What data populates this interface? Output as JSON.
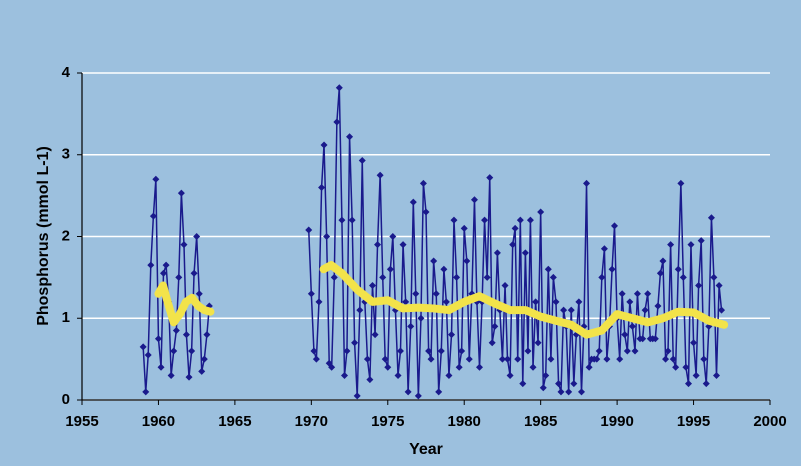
{
  "chart_data": {
    "type": "line",
    "xlabel": "Year",
    "ylabel": "Phosphorus (mmol L-1)",
    "xlim": [
      1955,
      2000
    ],
    "xticks": [
      1955,
      1960,
      1965,
      1970,
      1975,
      1980,
      1985,
      1990,
      1995,
      2000
    ],
    "ylim": [
      0,
      4
    ],
    "yticks": [
      0,
      1,
      2,
      3,
      4
    ],
    "grid": true,
    "series": [
      {
        "color": "#1a1a8c",
        "marker": "diamond",
        "x": [
          1959.0,
          1959.17,
          1959.33,
          1959.5,
          1959.67,
          1959.83,
          1960.0,
          1960.17,
          1960.33,
          1960.5,
          1960.67,
          1960.83,
          1961.0,
          1961.17,
          1961.33,
          1961.5,
          1961.67,
          1961.83,
          1962.0,
          1962.17,
          1962.33,
          1962.5,
          1962.67,
          1962.83,
          1963.0,
          1963.17,
          1963.33,
          1966,
          1969.83,
          1970.0,
          1970.17,
          1970.33,
          1970.5,
          1970.67,
          1970.83,
          1971.0,
          1971.17,
          1971.33,
          1971.5,
          1971.67,
          1971.83,
          1972.0,
          1972.17,
          1972.33,
          1972.5,
          1972.67,
          1972.83,
          1973.0,
          1973.17,
          1973.33,
          1973.5,
          1973.67,
          1973.83,
          1974.0,
          1974.17,
          1974.33,
          1974.5,
          1974.67,
          1974.83,
          1975.0,
          1975.17,
          1975.33,
          1975.5,
          1975.67,
          1975.83,
          1976.0,
          1976.17,
          1976.33,
          1976.5,
          1976.67,
          1976.83,
          1977.0,
          1977.17,
          1977.33,
          1977.5,
          1977.67,
          1977.83,
          1978.0,
          1978.17,
          1978.33,
          1978.5,
          1978.67,
          1978.83,
          1979.0,
          1979.17,
          1979.33,
          1979.5,
          1979.67,
          1979.83,
          1980.0,
          1980.17,
          1980.33,
          1980.5,
          1980.67,
          1980.83,
          1981.0,
          1981.17,
          1981.33,
          1981.5,
          1981.67,
          1981.83,
          1982.0,
          1982.17,
          1982.33,
          1982.5,
          1982.67,
          1982.83,
          1983.0,
          1983.17,
          1983.33,
          1983.5,
          1983.67,
          1983.83,
          1984.0,
          1984.17,
          1984.33,
          1984.5,
          1984.67,
          1984.83,
          1985.0,
          1985.17,
          1985.33,
          1985.5,
          1985.67,
          1985.83,
          1986.0,
          1986.17,
          1986.33,
          1986.5,
          1986.67,
          1986.83,
          1987.0,
          1987.17,
          1987.33,
          1987.5,
          1987.67,
          1987.83,
          1988.0,
          1988.17,
          1988.33,
          1988.5,
          1988.67,
          1988.83,
          1989.0,
          1989.17,
          1989.33,
          1989.5,
          1989.67,
          1989.83,
          1990.0,
          1990.17,
          1990.33,
          1990.5,
          1990.67,
          1990.83,
          1991.0,
          1991.17,
          1991.33,
          1991.5,
          1991.67,
          1991.83,
          1992.0,
          1992.17,
          1992.33,
          1992.5,
          1992.67,
          1992.83,
          1993.0,
          1993.17,
          1993.33,
          1993.5,
          1993.67,
          1993.83,
          1994.0,
          1994.17,
          1994.33,
          1994.5,
          1994.67,
          1994.83,
          1995.0,
          1995.17,
          1995.33,
          1995.5,
          1995.67,
          1995.83,
          1996.0,
          1996.17,
          1996.33,
          1996.5,
          1996.67,
          1996.83
        ],
        "values": [
          0.65,
          0.1,
          0.55,
          1.65,
          2.25,
          2.7,
          0.75,
          0.4,
          1.55,
          1.65,
          1.2,
          0.3,
          0.6,
          0.85,
          1.5,
          2.53,
          1.9,
          0.8,
          0.28,
          0.6,
          1.55,
          2.0,
          1.3,
          0.35,
          0.5,
          0.8,
          1.15,
          null,
          2.08,
          1.3,
          0.6,
          0.5,
          1.2,
          2.6,
          3.12,
          2.0,
          0.45,
          0.4,
          1.5,
          3.4,
          3.82,
          2.2,
          0.3,
          0.6,
          3.22,
          2.2,
          0.7,
          0.05,
          1.1,
          2.93,
          1.2,
          0.5,
          0.25,
          1.4,
          0.8,
          1.9,
          2.75,
          1.5,
          0.5,
          0.4,
          1.6,
          2.0,
          1.1,
          0.3,
          0.6,
          1.9,
          1.2,
          0.1,
          0.9,
          2.42,
          1.3,
          0.05,
          1.0,
          2.65,
          2.3,
          0.6,
          0.5,
          1.7,
          1.3,
          0.1,
          0.6,
          1.6,
          1.2,
          0.3,
          0.8,
          2.2,
          1.5,
          0.4,
          0.6,
          2.1,
          1.7,
          0.5,
          1.3,
          2.45,
          1.2,
          0.4,
          1.2,
          2.2,
          1.5,
          2.72,
          0.7,
          0.9,
          1.8,
          1.1,
          0.5,
          1.4,
          0.5,
          0.3,
          1.9,
          2.1,
          0.5,
          2.2,
          0.2,
          1.8,
          0.6,
          2.2,
          0.4,
          1.2,
          0.7,
          2.3,
          0.15,
          0.3,
          1.6,
          0.5,
          1.5,
          1.2,
          0.2,
          0.1,
          1.1,
          0.9,
          0.1,
          1.1,
          0.2,
          0.8,
          1.2,
          0.1,
          0.9,
          2.65,
          0.4,
          0.5,
          0.5,
          0.5,
          0.6,
          1.5,
          1.85,
          0.5,
          0.9,
          1.6,
          2.13,
          1.0,
          0.5,
          1.3,
          0.8,
          0.6,
          1.2,
          0.9,
          0.6,
          1.3,
          0.75,
          0.75,
          1.1,
          1.3,
          0.75,
          0.75,
          0.75,
          1.15,
          1.55,
          1.7,
          0.5,
          0.6,
          1.9,
          0.5,
          0.4,
          1.6,
          2.65,
          1.5,
          0.4,
          0.2,
          1.9,
          0.7,
          0.3,
          1.4,
          1.95,
          0.5,
          0.2,
          0.9,
          2.23,
          1.5,
          0.3,
          1.4,
          1.1
        ]
      },
      {
        "color": "#f2e34a",
        "x": [
          1960.0,
          1960.3,
          1960.6,
          1961.0,
          1961.4,
          1961.8,
          1962.2,
          1962.6,
          1963.0,
          1963.4,
          1966,
          1970.8,
          1971.3,
          1972,
          1973,
          1974,
          1975,
          1976,
          1977,
          1978,
          1979,
          1980,
          1981,
          1982,
          1983,
          1984,
          1985,
          1986,
          1987,
          1988,
          1989,
          1990,
          1991,
          1992,
          1993,
          1994,
          1995,
          1996,
          1997
        ],
        "values": [
          1.3,
          1.4,
          1.2,
          0.95,
          1.05,
          1.2,
          1.25,
          1.15,
          1.1,
          1.08,
          null,
          1.6,
          1.65,
          1.55,
          1.35,
          1.2,
          1.22,
          1.12,
          1.13,
          1.12,
          1.1,
          1.2,
          1.27,
          1.18,
          1.1,
          1.1,
          1.02,
          0.97,
          0.92,
          0.8,
          0.85,
          1.05,
          1.0,
          0.95,
          1.0,
          1.08,
          1.07,
          0.97,
          0.92
        ]
      }
    ]
  }
}
